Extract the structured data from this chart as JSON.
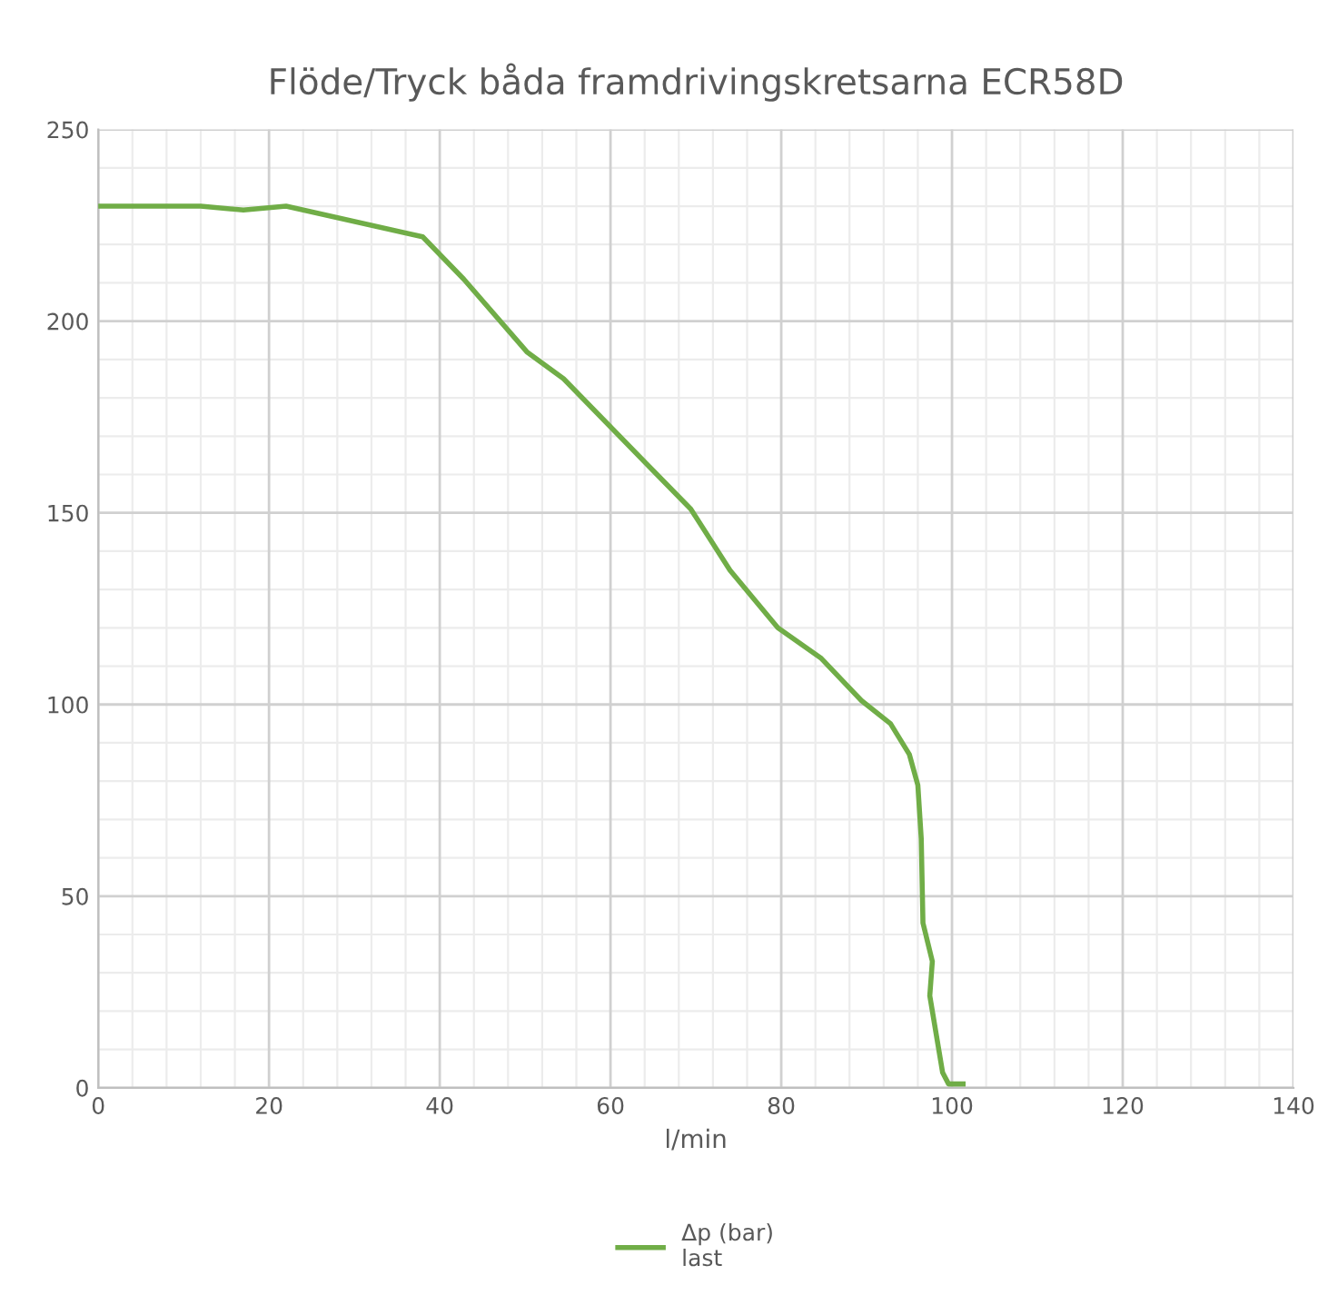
{
  "chart_data": {
    "type": "line",
    "title": "Flöde/Tryck båda framdrivingskretsarna ECR58D",
    "xlabel": "l/min",
    "xlim": [
      0,
      140
    ],
    "xticks": [
      0,
      20,
      40,
      60,
      80,
      100,
      120,
      140
    ],
    "ylim": [
      0,
      250
    ],
    "yticks": [
      0,
      50,
      100,
      150,
      200,
      250
    ],
    "grid": true,
    "legend": "bottom",
    "marker": "none",
    "line_style": "solid",
    "series": [
      {
        "name": "Δp (bar)\nlast",
        "color": "#70ad47",
        "x": [
          0,
          12,
          17,
          22,
          38,
          42.8,
          50.2,
          54.5,
          65,
          69.4,
          74,
          79.6,
          84.7,
          89.4,
          92.8,
          95,
          96,
          96.4,
          96.6,
          97.7,
          97.4,
          98.9,
          99.6,
          101.3
        ],
        "values": [
          230,
          230,
          229,
          230,
          222,
          211,
          192,
          185,
          161,
          151,
          135,
          120,
          112,
          101,
          95,
          87,
          79,
          65,
          43,
          33,
          24,
          4,
          1,
          1
        ]
      }
    ]
  }
}
